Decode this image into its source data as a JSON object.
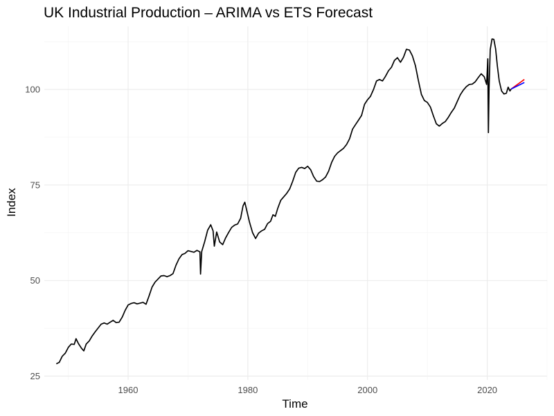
{
  "chart_data": {
    "type": "line",
    "title": "UK Industrial Production – ARIMA vs ETS Forecast",
    "xlabel": "Time",
    "ylabel": "Index",
    "xlim": [
      1946,
      2030
    ],
    "ylim": [
      24,
      116.5
    ],
    "x_ticks": [
      1960,
      1980,
      2000,
      2020
    ],
    "y_ticks": [
      25,
      50,
      75,
      100
    ],
    "grid": true,
    "legend": "none",
    "series": [
      {
        "color": "#000000",
        "points": [
          [
            1948.0,
            28.2
          ],
          [
            1948.5,
            28.6
          ],
          [
            1949.0,
            30.2
          ],
          [
            1949.5,
            31.0
          ],
          [
            1950.0,
            32.5
          ],
          [
            1950.5,
            33.4
          ],
          [
            1951.0,
            33.3
          ],
          [
            1951.3,
            34.8
          ],
          [
            1951.7,
            33.5
          ],
          [
            1952.2,
            32.3
          ],
          [
            1952.6,
            31.6
          ],
          [
            1953.0,
            33.4
          ],
          [
            1953.5,
            34.2
          ],
          [
            1954.0,
            35.5
          ],
          [
            1954.5,
            36.6
          ],
          [
            1955.0,
            37.6
          ],
          [
            1955.5,
            38.6
          ],
          [
            1956.0,
            38.9
          ],
          [
            1956.5,
            38.6
          ],
          [
            1957.0,
            39.1
          ],
          [
            1957.5,
            39.6
          ],
          [
            1958.0,
            39.0
          ],
          [
            1958.5,
            39.1
          ],
          [
            1959.0,
            40.4
          ],
          [
            1959.5,
            42.2
          ],
          [
            1960.0,
            43.6
          ],
          [
            1960.5,
            44.0
          ],
          [
            1961.0,
            44.2
          ],
          [
            1961.5,
            43.9
          ],
          [
            1962.0,
            44.1
          ],
          [
            1962.5,
            44.3
          ],
          [
            1963.0,
            43.8
          ],
          [
            1963.5,
            46.0
          ],
          [
            1964.0,
            48.3
          ],
          [
            1964.5,
            49.6
          ],
          [
            1965.0,
            50.4
          ],
          [
            1965.5,
            51.2
          ],
          [
            1966.0,
            51.3
          ],
          [
            1966.5,
            51.0
          ],
          [
            1967.0,
            51.3
          ],
          [
            1967.5,
            51.8
          ],
          [
            1968.0,
            54.0
          ],
          [
            1968.5,
            55.7
          ],
          [
            1969.0,
            56.8
          ],
          [
            1969.5,
            57.1
          ],
          [
            1970.0,
            57.8
          ],
          [
            1970.5,
            57.6
          ],
          [
            1971.0,
            57.4
          ],
          [
            1971.5,
            57.9
          ],
          [
            1972.0,
            57.5
          ],
          [
            1972.1,
            51.7
          ],
          [
            1972.3,
            57.6
          ],
          [
            1972.8,
            60.2
          ],
          [
            1973.3,
            63.2
          ],
          [
            1973.8,
            64.6
          ],
          [
            1974.2,
            63.0
          ],
          [
            1974.4,
            59.0
          ],
          [
            1974.8,
            62.7
          ],
          [
            1975.3,
            60.1
          ],
          [
            1975.8,
            59.4
          ],
          [
            1976.3,
            61.2
          ],
          [
            1976.8,
            62.6
          ],
          [
            1977.3,
            63.9
          ],
          [
            1977.8,
            64.5
          ],
          [
            1978.3,
            64.8
          ],
          [
            1978.8,
            66.3
          ],
          [
            1979.2,
            69.5
          ],
          [
            1979.5,
            70.5
          ],
          [
            1979.8,
            68.5
          ],
          [
            1980.3,
            65.2
          ],
          [
            1980.8,
            62.5
          ],
          [
            1981.3,
            61.0
          ],
          [
            1981.8,
            62.4
          ],
          [
            1982.3,
            63.0
          ],
          [
            1982.8,
            63.4
          ],
          [
            1983.3,
            64.9
          ],
          [
            1983.8,
            65.5
          ],
          [
            1984.2,
            67.2
          ],
          [
            1984.6,
            66.8
          ],
          [
            1985.0,
            68.9
          ],
          [
            1985.5,
            71.0
          ],
          [
            1986.0,
            71.9
          ],
          [
            1986.5,
            72.8
          ],
          [
            1987.0,
            74.0
          ],
          [
            1987.5,
            76.0
          ],
          [
            1988.0,
            78.3
          ],
          [
            1988.5,
            79.4
          ],
          [
            1989.0,
            79.6
          ],
          [
            1989.5,
            79.3
          ],
          [
            1990.0,
            79.9
          ],
          [
            1990.5,
            79.0
          ],
          [
            1991.0,
            77.2
          ],
          [
            1991.5,
            76.0
          ],
          [
            1992.0,
            75.9
          ],
          [
            1992.5,
            76.4
          ],
          [
            1993.0,
            77.1
          ],
          [
            1993.5,
            78.6
          ],
          [
            1994.0,
            80.9
          ],
          [
            1994.5,
            82.5
          ],
          [
            1995.0,
            83.4
          ],
          [
            1995.5,
            84.0
          ],
          [
            1996.0,
            84.6
          ],
          [
            1996.5,
            85.6
          ],
          [
            1997.0,
            87.1
          ],
          [
            1997.5,
            89.6
          ],
          [
            1998.0,
            90.8
          ],
          [
            1998.5,
            92.0
          ],
          [
            1999.0,
            93.2
          ],
          [
            1999.5,
            96.1
          ],
          [
            2000.0,
            97.3
          ],
          [
            2000.5,
            98.2
          ],
          [
            2001.0,
            100.0
          ],
          [
            2001.5,
            102.2
          ],
          [
            2002.0,
            102.6
          ],
          [
            2002.5,
            102.2
          ],
          [
            2003.0,
            103.4
          ],
          [
            2003.5,
            104.9
          ],
          [
            2004.0,
            105.8
          ],
          [
            2004.5,
            107.6
          ],
          [
            2005.0,
            108.3
          ],
          [
            2005.5,
            107.1
          ],
          [
            2006.0,
            108.4
          ],
          [
            2006.5,
            110.5
          ],
          [
            2007.0,
            110.3
          ],
          [
            2007.5,
            108.8
          ],
          [
            2008.0,
            106.2
          ],
          [
            2008.5,
            102.3
          ],
          [
            2009.0,
            98.7
          ],
          [
            2009.5,
            97.1
          ],
          [
            2010.0,
            96.6
          ],
          [
            2010.5,
            95.4
          ],
          [
            2011.0,
            93.1
          ],
          [
            2011.5,
            91.0
          ],
          [
            2012.0,
            90.4
          ],
          [
            2012.5,
            91.1
          ],
          [
            2013.0,
            91.6
          ],
          [
            2013.5,
            92.7
          ],
          [
            2014.0,
            94.0
          ],
          [
            2014.5,
            95.1
          ],
          [
            2015.0,
            96.9
          ],
          [
            2015.5,
            98.6
          ],
          [
            2016.0,
            99.8
          ],
          [
            2016.5,
            100.7
          ],
          [
            2017.0,
            101.3
          ],
          [
            2017.5,
            101.4
          ],
          [
            2018.0,
            102.0
          ],
          [
            2018.5,
            103.1
          ],
          [
            2019.0,
            104.1
          ],
          [
            2019.5,
            103.3
          ],
          [
            2019.9,
            101.3
          ],
          [
            2020.1,
            108.0
          ],
          [
            2020.2,
            88.7
          ],
          [
            2020.3,
            100.0
          ],
          [
            2020.5,
            110.4
          ],
          [
            2020.8,
            113.2
          ],
          [
            2021.1,
            113.1
          ],
          [
            2021.4,
            110.6
          ],
          [
            2021.7,
            106.0
          ],
          [
            2022.0,
            102.2
          ],
          [
            2022.4,
            99.6
          ],
          [
            2022.8,
            98.8
          ],
          [
            2023.2,
            99.0
          ],
          [
            2023.5,
            100.6
          ],
          [
            2023.8,
            99.6
          ],
          [
            2024.0,
            100.1
          ]
        ]
      },
      {
        "color": "#ff0000",
        "points": [
          [
            2024.0,
            100.1
          ],
          [
            2026.2,
            102.6
          ]
        ]
      },
      {
        "color": "#0000ff",
        "points": [
          [
            2024.0,
            100.1
          ],
          [
            2026.2,
            101.8
          ]
        ]
      }
    ]
  }
}
